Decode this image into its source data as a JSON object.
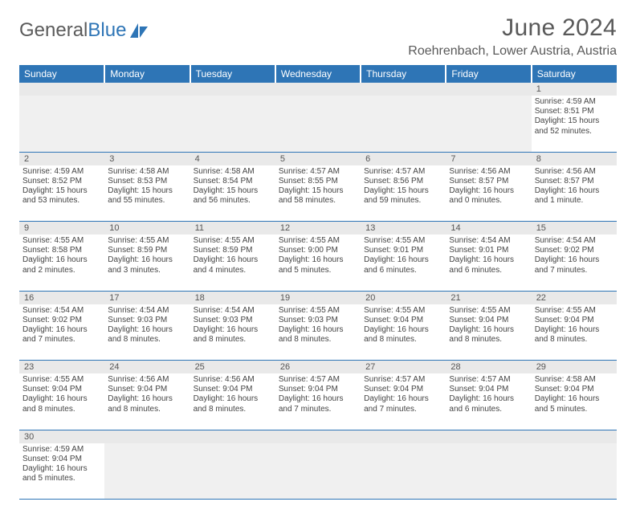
{
  "brand": {
    "general": "General",
    "blue": "Blue",
    "logo_color": "#2e75b6"
  },
  "title": "June 2024",
  "location": "Roehrenbach, Lower Austria, Austria",
  "colors": {
    "header_bg": "#2e75b6",
    "header_text": "#ffffff",
    "daynum_bg": "#e9e9e9",
    "text": "#444444",
    "title_text": "#595959",
    "row_border": "#2e75b6"
  },
  "day_names": [
    "Sunday",
    "Monday",
    "Tuesday",
    "Wednesday",
    "Thursday",
    "Friday",
    "Saturday"
  ],
  "days": {
    "1": {
      "sunrise": "Sunrise: 4:59 AM",
      "sunset": "Sunset: 8:51 PM",
      "daylight": "Daylight: 15 hours and 52 minutes."
    },
    "2": {
      "sunrise": "Sunrise: 4:59 AM",
      "sunset": "Sunset: 8:52 PM",
      "daylight": "Daylight: 15 hours and 53 minutes."
    },
    "3": {
      "sunrise": "Sunrise: 4:58 AM",
      "sunset": "Sunset: 8:53 PM",
      "daylight": "Daylight: 15 hours and 55 minutes."
    },
    "4": {
      "sunrise": "Sunrise: 4:58 AM",
      "sunset": "Sunset: 8:54 PM",
      "daylight": "Daylight: 15 hours and 56 minutes."
    },
    "5": {
      "sunrise": "Sunrise: 4:57 AM",
      "sunset": "Sunset: 8:55 PM",
      "daylight": "Daylight: 15 hours and 58 minutes."
    },
    "6": {
      "sunrise": "Sunrise: 4:57 AM",
      "sunset": "Sunset: 8:56 PM",
      "daylight": "Daylight: 15 hours and 59 minutes."
    },
    "7": {
      "sunrise": "Sunrise: 4:56 AM",
      "sunset": "Sunset: 8:57 PM",
      "daylight": "Daylight: 16 hours and 0 minutes."
    },
    "8": {
      "sunrise": "Sunrise: 4:56 AM",
      "sunset": "Sunset: 8:57 PM",
      "daylight": "Daylight: 16 hours and 1 minute."
    },
    "9": {
      "sunrise": "Sunrise: 4:55 AM",
      "sunset": "Sunset: 8:58 PM",
      "daylight": "Daylight: 16 hours and 2 minutes."
    },
    "10": {
      "sunrise": "Sunrise: 4:55 AM",
      "sunset": "Sunset: 8:59 PM",
      "daylight": "Daylight: 16 hours and 3 minutes."
    },
    "11": {
      "sunrise": "Sunrise: 4:55 AM",
      "sunset": "Sunset: 8:59 PM",
      "daylight": "Daylight: 16 hours and 4 minutes."
    },
    "12": {
      "sunrise": "Sunrise: 4:55 AM",
      "sunset": "Sunset: 9:00 PM",
      "daylight": "Daylight: 16 hours and 5 minutes."
    },
    "13": {
      "sunrise": "Sunrise: 4:55 AM",
      "sunset": "Sunset: 9:01 PM",
      "daylight": "Daylight: 16 hours and 6 minutes."
    },
    "14": {
      "sunrise": "Sunrise: 4:54 AM",
      "sunset": "Sunset: 9:01 PM",
      "daylight": "Daylight: 16 hours and 6 minutes."
    },
    "15": {
      "sunrise": "Sunrise: 4:54 AM",
      "sunset": "Sunset: 9:02 PM",
      "daylight": "Daylight: 16 hours and 7 minutes."
    },
    "16": {
      "sunrise": "Sunrise: 4:54 AM",
      "sunset": "Sunset: 9:02 PM",
      "daylight": "Daylight: 16 hours and 7 minutes."
    },
    "17": {
      "sunrise": "Sunrise: 4:54 AM",
      "sunset": "Sunset: 9:03 PM",
      "daylight": "Daylight: 16 hours and 8 minutes."
    },
    "18": {
      "sunrise": "Sunrise: 4:54 AM",
      "sunset": "Sunset: 9:03 PM",
      "daylight": "Daylight: 16 hours and 8 minutes."
    },
    "19": {
      "sunrise": "Sunrise: 4:55 AM",
      "sunset": "Sunset: 9:03 PM",
      "daylight": "Daylight: 16 hours and 8 minutes."
    },
    "20": {
      "sunrise": "Sunrise: 4:55 AM",
      "sunset": "Sunset: 9:04 PM",
      "daylight": "Daylight: 16 hours and 8 minutes."
    },
    "21": {
      "sunrise": "Sunrise: 4:55 AM",
      "sunset": "Sunset: 9:04 PM",
      "daylight": "Daylight: 16 hours and 8 minutes."
    },
    "22": {
      "sunrise": "Sunrise: 4:55 AM",
      "sunset": "Sunset: 9:04 PM",
      "daylight": "Daylight: 16 hours and 8 minutes."
    },
    "23": {
      "sunrise": "Sunrise: 4:55 AM",
      "sunset": "Sunset: 9:04 PM",
      "daylight": "Daylight: 16 hours and 8 minutes."
    },
    "24": {
      "sunrise": "Sunrise: 4:56 AM",
      "sunset": "Sunset: 9:04 PM",
      "daylight": "Daylight: 16 hours and 8 minutes."
    },
    "25": {
      "sunrise": "Sunrise: 4:56 AM",
      "sunset": "Sunset: 9:04 PM",
      "daylight": "Daylight: 16 hours and 8 minutes."
    },
    "26": {
      "sunrise": "Sunrise: 4:57 AM",
      "sunset": "Sunset: 9:04 PM",
      "daylight": "Daylight: 16 hours and 7 minutes."
    },
    "27": {
      "sunrise": "Sunrise: 4:57 AM",
      "sunset": "Sunset: 9:04 PM",
      "daylight": "Daylight: 16 hours and 7 minutes."
    },
    "28": {
      "sunrise": "Sunrise: 4:57 AM",
      "sunset": "Sunset: 9:04 PM",
      "daylight": "Daylight: 16 hours and 6 minutes."
    },
    "29": {
      "sunrise": "Sunrise: 4:58 AM",
      "sunset": "Sunset: 9:04 PM",
      "daylight": "Daylight: 16 hours and 5 minutes."
    },
    "30": {
      "sunrise": "Sunrise: 4:59 AM",
      "sunset": "Sunset: 9:04 PM",
      "daylight": "Daylight: 16 hours and 5 minutes."
    }
  },
  "grid": [
    [
      null,
      null,
      null,
      null,
      null,
      null,
      "1"
    ],
    [
      "2",
      "3",
      "4",
      "5",
      "6",
      "7",
      "8"
    ],
    [
      "9",
      "10",
      "11",
      "12",
      "13",
      "14",
      "15"
    ],
    [
      "16",
      "17",
      "18",
      "19",
      "20",
      "21",
      "22"
    ],
    [
      "23",
      "24",
      "25",
      "26",
      "27",
      "28",
      "29"
    ],
    [
      "30",
      null,
      null,
      null,
      null,
      null,
      null
    ]
  ]
}
